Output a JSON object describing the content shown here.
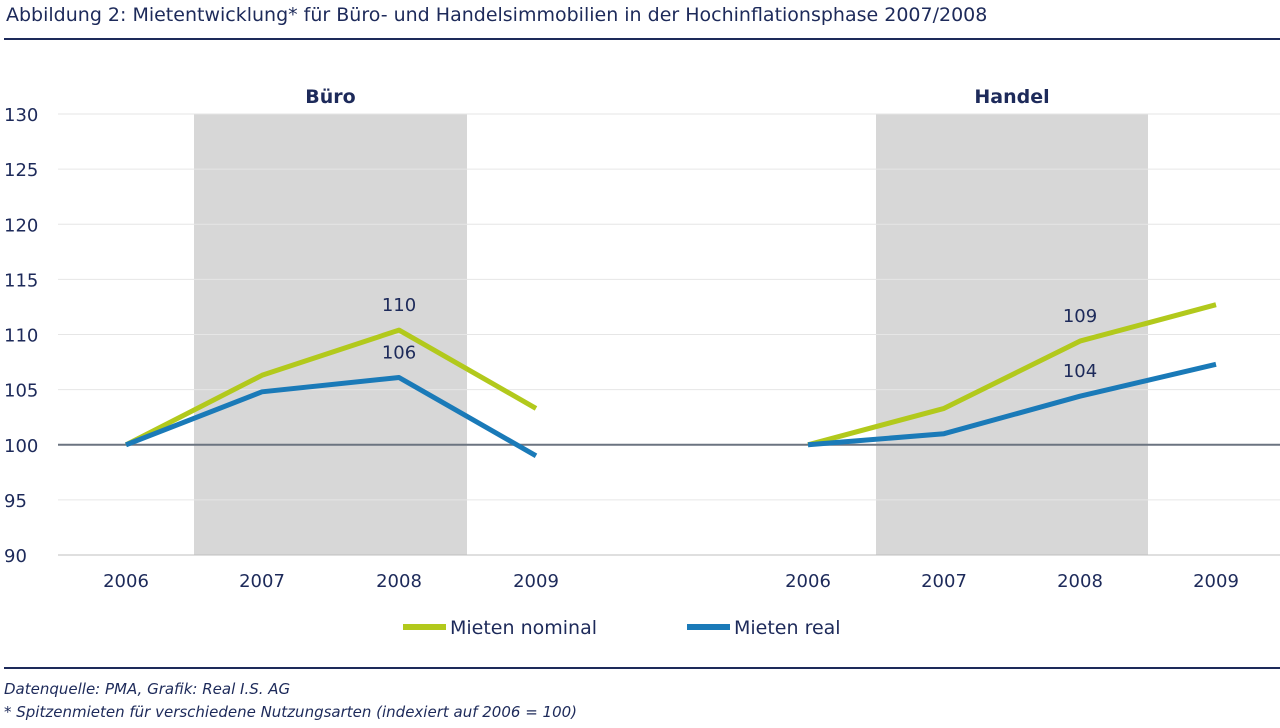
{
  "title": "Abbildung 2: Mietentwicklung* für Büro- und Handelsimmobilien in der Hochinflationsphase 2007/2008",
  "footer": {
    "source": "Datenquelle: PMA, Grafik: Real I.S. AG",
    "note": "* Spitzenmieten für verschiedene Nutzungsarten (indexiert auf 2006 = 100)"
  },
  "colors": {
    "nominal": "#b2c91c",
    "real": "#1a7ab8",
    "shade": "#d7d7d7",
    "text": "#1d2a5a",
    "baseline": "#6b7480"
  },
  "chart_data": {
    "type": "line",
    "ylim": [
      90,
      130
    ],
    "yticks": [
      90,
      95,
      100,
      105,
      110,
      115,
      120,
      125,
      130
    ],
    "grid": true,
    "legend_position": "bottom",
    "legend": [
      "Mieten nominal",
      "Mieten real"
    ],
    "panels": [
      {
        "name": "Büro",
        "categories": [
          "2006",
          "2007",
          "2008",
          "2009"
        ],
        "shaded": [
          "2007",
          "2008"
        ],
        "series": [
          {
            "name": "Mieten nominal",
            "key": "nominal",
            "values": [
              100,
              106.3,
              110.4,
              103.3
            ]
          },
          {
            "name": "Mieten real",
            "key": "real",
            "values": [
              100,
              104.8,
              106.1,
              99.0
            ]
          }
        ],
        "labels": [
          {
            "text": "110",
            "category": "2008",
            "value": 110.4,
            "series": "nominal"
          },
          {
            "text": "106",
            "category": "2008",
            "value": 106.1,
            "series": "real"
          }
        ]
      },
      {
        "name": "Handel",
        "categories": [
          "2006",
          "2007",
          "2008",
          "2009"
        ],
        "shaded": [
          "2007",
          "2008"
        ],
        "series": [
          {
            "name": "Mieten nominal",
            "key": "nominal",
            "values": [
              100,
              103.3,
              109.4,
              112.7
            ]
          },
          {
            "name": "Mieten real",
            "key": "real",
            "values": [
              100,
              101.0,
              104.4,
              107.3
            ]
          }
        ],
        "labels": [
          {
            "text": "109",
            "category": "2008",
            "value": 109.4,
            "series": "nominal"
          },
          {
            "text": "104",
            "category": "2008",
            "value": 104.4,
            "series": "real"
          }
        ]
      }
    ]
  }
}
